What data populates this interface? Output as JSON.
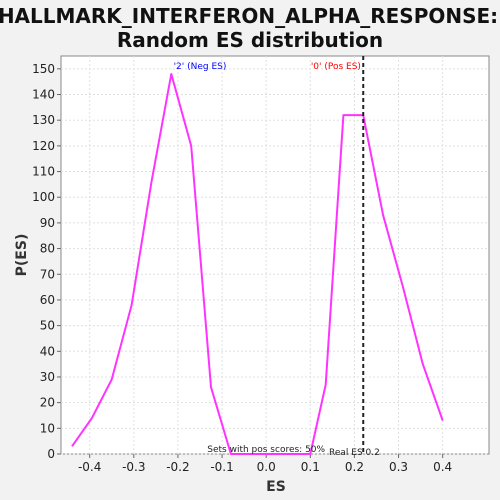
{
  "chart_data": {
    "type": "line",
    "title_line1": "HALLMARK_INTERFERON_ALPHA_RESPONSE:",
    "title_line2": "Random ES distribution",
    "xlabel": "ES",
    "ylabel": "P(ES)",
    "xlim": [
      -0.465,
      0.505
    ],
    "ylim": [
      0,
      155
    ],
    "x_ticks": [
      -0.4,
      -0.3,
      -0.2,
      -0.1,
      0.0,
      0.1,
      0.2,
      0.3,
      0.4
    ],
    "x_tick_labels": [
      "-0.4",
      "-0.3",
      "-0.2",
      "-0.1",
      "0.0",
      "0.1",
      "0.2",
      "0.3",
      "0.4"
    ],
    "y_ticks": [
      0,
      10,
      20,
      30,
      40,
      50,
      60,
      70,
      80,
      90,
      100,
      110,
      120,
      130,
      140,
      150
    ],
    "y_tick_labels": [
      "0",
      "10",
      "20",
      "30",
      "40",
      "50",
      "60",
      "70",
      "80",
      "90",
      "100",
      "110",
      "120",
      "130",
      "140",
      "150"
    ],
    "grid": true,
    "series": [
      {
        "color": "#ff33ff",
        "x": [
          -0.44,
          -0.395,
          -0.35,
          -0.305,
          -0.26,
          -0.215,
          -0.17,
          -0.125,
          -0.08,
          -0.035,
          0.01,
          0.055,
          0.1,
          0.135,
          0.175,
          0.22,
          0.265,
          0.31,
          0.355,
          0.4
        ],
        "y": [
          3,
          14,
          29,
          58,
          106,
          148,
          120,
          26,
          0,
          0,
          0,
          0,
          0,
          27,
          132,
          132,
          93,
          65,
          35,
          13
        ]
      }
    ],
    "real_es": 0.22,
    "annotations": {
      "neg_label": "'2' (Neg ES)",
      "neg_color": "#0000ff",
      "pos_label": "'0' (Pos ES)",
      "pos_color": "#ff0000",
      "pos_scores": "Sets with pos scores: 50%",
      "real_es": "Real ES 0.2"
    }
  }
}
